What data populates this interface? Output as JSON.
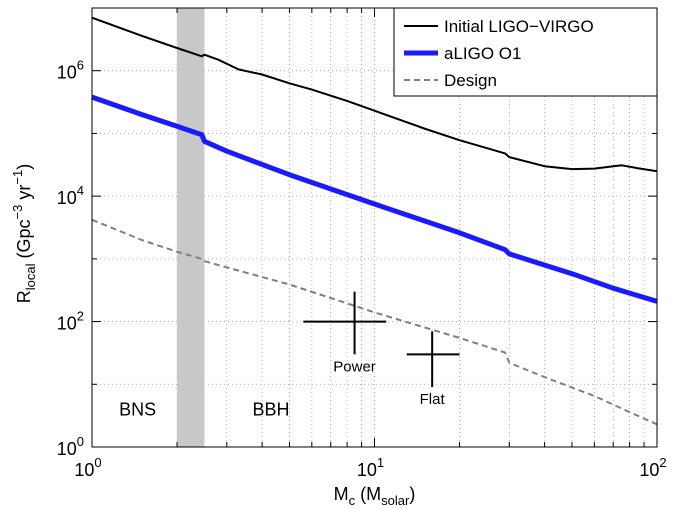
{
  "chart_data": {
    "type": "line",
    "x_scale": "log",
    "y_scale": "log",
    "xlim": [
      1,
      100
    ],
    "ylim": [
      1,
      10000000
    ],
    "xlabel": {
      "main": "M",
      "sub": "c",
      "rest_open": " (M",
      "rest_sub": "solar",
      "rest_close": ")"
    },
    "ylabel": {
      "main": "R",
      "sub": "local",
      "rest1": " (Gpc",
      "sup1": "−3",
      "rest2": " yr",
      "sup2": "−1",
      "rest3": ")"
    },
    "x_ticks": [
      {
        "value": 1,
        "base": "10",
        "exp": "0"
      },
      {
        "value": 10,
        "base": "10",
        "exp": "1"
      },
      {
        "value": 100,
        "base": "10",
        "exp": "2"
      }
    ],
    "y_ticks": [
      {
        "value": 1,
        "base": "10",
        "exp": "0"
      },
      {
        "value": 100,
        "base": "10",
        "exp": "2"
      },
      {
        "value": 10000,
        "base": "10",
        "exp": "4"
      },
      {
        "value": 1000000,
        "base": "10",
        "exp": "6"
      }
    ],
    "grid": true,
    "legend_position": "top-right",
    "shaded_band": {
      "x": [
        2.0,
        2.5
      ],
      "color": "#c8c8c8"
    },
    "series": [
      {
        "name": "Initial LIGO−VIRGO",
        "color": "#000000",
        "style": "solid",
        "width": 2,
        "points": [
          [
            1,
            7000000
          ],
          [
            1.5,
            3600000
          ],
          [
            2,
            2300000
          ],
          [
            2.45,
            1700000
          ],
          [
            2.5,
            1800000
          ],
          [
            2.8,
            1500000
          ],
          [
            3.3,
            1050000
          ],
          [
            4,
            870000
          ],
          [
            5,
            630000
          ],
          [
            6,
            500000
          ],
          [
            8,
            330000
          ],
          [
            10,
            230000
          ],
          [
            15,
            120000
          ],
          [
            20,
            78000
          ],
          [
            29,
            48000
          ],
          [
            30,
            42000
          ],
          [
            40,
            30000
          ],
          [
            50,
            27000
          ],
          [
            60,
            27500
          ],
          [
            75,
            31000
          ],
          [
            85,
            28000
          ],
          [
            100,
            25000
          ]
        ]
      },
      {
        "name": "aLIGO O1",
        "color": "#1a1aff",
        "style": "solid",
        "width": 5,
        "points": [
          [
            1,
            380000
          ],
          [
            1.5,
            200000
          ],
          [
            2,
            130000
          ],
          [
            2.45,
            95000
          ],
          [
            2.5,
            75000
          ],
          [
            3,
            52000
          ],
          [
            5,
            22000
          ],
          [
            10,
            7500
          ],
          [
            20,
            2600
          ],
          [
            29,
            1400
          ],
          [
            30,
            1200
          ],
          [
            50,
            580
          ],
          [
            70,
            340
          ],
          [
            100,
            210
          ]
        ]
      },
      {
        "name": "Design",
        "color": "#808080",
        "style": "dashed",
        "width": 2,
        "points": [
          [
            1,
            4200
          ],
          [
            1.5,
            2000
          ],
          [
            2,
            1300
          ],
          [
            2.45,
            1000
          ],
          [
            2.5,
            920
          ],
          [
            3,
            730
          ],
          [
            5,
            390
          ],
          [
            10,
            140
          ],
          [
            20,
            55
          ],
          [
            29,
            32
          ],
          [
            30,
            22
          ],
          [
            40,
            13
          ],
          [
            60,
            6.5
          ],
          [
            80,
            3.6
          ],
          [
            100,
            2.3
          ]
        ]
      }
    ],
    "error_crosses": [
      {
        "label": "Power",
        "x": 8.5,
        "y": 100,
        "x_range": [
          5.6,
          11
        ],
        "y_range": [
          30,
          300
        ]
      },
      {
        "label": "Flat",
        "x": 16,
        "y": 30,
        "x_range": [
          13,
          20
        ],
        "y_range": [
          9,
          70
        ]
      }
    ],
    "annotations": [
      {
        "text": "BNS",
        "x": 1.45,
        "y": 3.2
      },
      {
        "text": "BBH",
        "x": 4.3,
        "y": 3.2
      }
    ]
  }
}
